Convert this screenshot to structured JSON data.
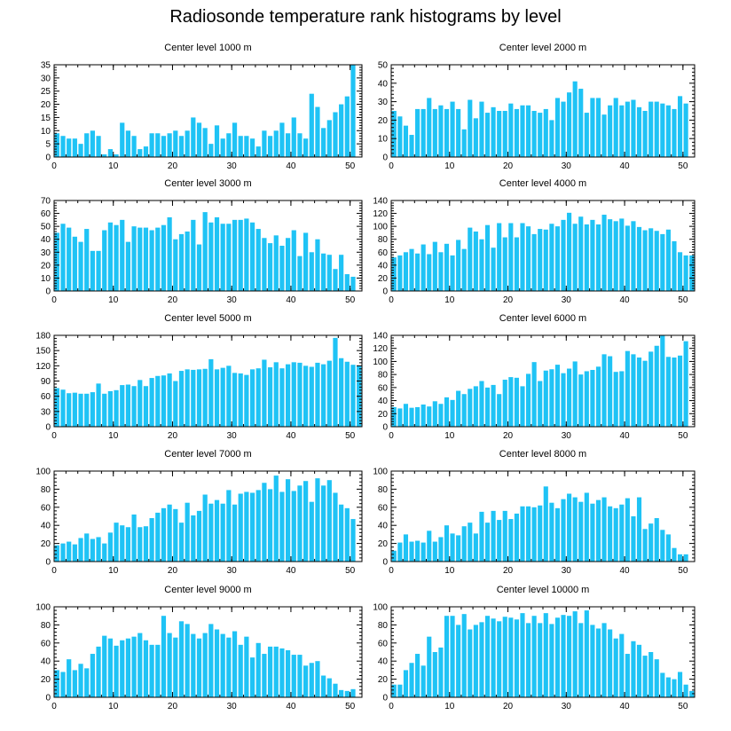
{
  "title": "Radiosonde temperature rank histograms by level",
  "colors": {
    "bar": "#1fc3f5",
    "axis": "#000000",
    "background": "#ffffff"
  },
  "chart_data": [
    {
      "type": "bar",
      "title": "Center level 1000 m",
      "xlabel": "",
      "ylabel": "",
      "xlim": [
        0,
        52
      ],
      "ylim": [
        0,
        35
      ],
      "xticks": [
        0,
        10,
        20,
        30,
        40,
        50
      ],
      "yticks": [
        0,
        5,
        10,
        15,
        20,
        25,
        30,
        35
      ],
      "categories": [
        0,
        1,
        2,
        3,
        4,
        5,
        6,
        7,
        8,
        9,
        10,
        11,
        12,
        13,
        14,
        15,
        16,
        17,
        18,
        19,
        20,
        21,
        22,
        23,
        24,
        25,
        26,
        27,
        28,
        29,
        30,
        31,
        32,
        33,
        34,
        35,
        36,
        37,
        38,
        39,
        40,
        41,
        42,
        43,
        44,
        45,
        46,
        47,
        48,
        49,
        50,
        51
      ],
      "values": [
        9,
        8,
        7,
        7,
        5,
        9,
        10,
        8,
        1,
        3,
        1,
        13,
        10,
        8,
        3,
        4,
        9,
        9,
        8,
        9,
        10,
        8,
        10,
        15,
        13,
        11,
        5,
        12,
        7,
        9,
        13,
        8,
        8,
        7,
        4,
        10,
        8,
        10,
        13,
        9,
        15,
        9,
        7,
        24,
        19,
        11,
        14,
        17,
        20,
        23,
        35,
        0
      ]
    },
    {
      "type": "bar",
      "title": "Center level 2000 m",
      "xlabel": "",
      "ylabel": "",
      "xlim": [
        0,
        52
      ],
      "ylim": [
        0,
        50
      ],
      "xticks": [
        0,
        10,
        20,
        30,
        40,
        50
      ],
      "yticks": [
        0,
        10,
        20,
        30,
        40,
        50
      ],
      "categories": [
        0,
        1,
        2,
        3,
        4,
        5,
        6,
        7,
        8,
        9,
        10,
        11,
        12,
        13,
        14,
        15,
        16,
        17,
        18,
        19,
        20,
        21,
        22,
        23,
        24,
        25,
        26,
        27,
        28,
        29,
        30,
        31,
        32,
        33,
        34,
        35,
        36,
        37,
        38,
        39,
        40,
        41,
        42,
        43,
        44,
        45,
        46,
        47,
        48,
        49,
        50,
        51
      ],
      "values": [
        25,
        22,
        17,
        12,
        26,
        26,
        32,
        26,
        28,
        26,
        30,
        26,
        15,
        31,
        21,
        30,
        24,
        27,
        25,
        25,
        29,
        26,
        28,
        28,
        25,
        24,
        26,
        20,
        32,
        30,
        35,
        41,
        37,
        24,
        32,
        32,
        23,
        28,
        32,
        28,
        30,
        31,
        27,
        25,
        30,
        30,
        29,
        28,
        26,
        33,
        29,
        0
      ]
    },
    {
      "type": "bar",
      "title": "Center level 3000 m",
      "xlabel": "",
      "ylabel": "",
      "xlim": [
        0,
        52
      ],
      "ylim": [
        0,
        70
      ],
      "xticks": [
        0,
        10,
        20,
        30,
        40,
        50
      ],
      "yticks": [
        0,
        10,
        20,
        30,
        40,
        50,
        60,
        70
      ],
      "categories": [
        0,
        1,
        2,
        3,
        4,
        5,
        6,
        7,
        8,
        9,
        10,
        11,
        12,
        13,
        14,
        15,
        16,
        17,
        18,
        19,
        20,
        21,
        22,
        23,
        24,
        25,
        26,
        27,
        28,
        29,
        30,
        31,
        32,
        33,
        34,
        35,
        36,
        37,
        38,
        39,
        40,
        41,
        42,
        43,
        44,
        45,
        46,
        47,
        48,
        49,
        50,
        51
      ],
      "values": [
        45,
        52,
        49,
        42,
        38,
        48,
        31,
        31,
        47,
        53,
        51,
        55,
        38,
        50,
        49,
        49,
        47,
        49,
        51,
        57,
        40,
        44,
        46,
        55,
        36,
        61,
        53,
        57,
        52,
        52,
        55,
        55,
        56,
        53,
        48,
        41,
        37,
        43,
        35,
        41,
        47,
        27,
        45,
        30,
        40,
        29,
        28,
        17,
        28,
        13,
        11,
        0
      ]
    },
    {
      "type": "bar",
      "title": "Center level 4000 m",
      "xlabel": "",
      "ylabel": "",
      "xlim": [
        0,
        52
      ],
      "ylim": [
        0,
        140
      ],
      "xticks": [
        0,
        10,
        20,
        30,
        40,
        50
      ],
      "yticks": [
        0,
        20,
        40,
        60,
        80,
        100,
        120,
        140
      ],
      "categories": [
        0,
        1,
        2,
        3,
        4,
        5,
        6,
        7,
        8,
        9,
        10,
        11,
        12,
        13,
        14,
        15,
        16,
        17,
        18,
        19,
        20,
        21,
        22,
        23,
        24,
        25,
        26,
        27,
        28,
        29,
        30,
        31,
        32,
        33,
        34,
        35,
        36,
        37,
        38,
        39,
        40,
        41,
        42,
        43,
        44,
        45,
        46,
        47,
        48,
        49,
        50,
        51
      ],
      "values": [
        52,
        55,
        60,
        65,
        58,
        72,
        57,
        76,
        60,
        73,
        55,
        79,
        65,
        98,
        92,
        80,
        102,
        67,
        105,
        83,
        105,
        83,
        105,
        100,
        88,
        96,
        95,
        104,
        100,
        110,
        121,
        104,
        115,
        103,
        110,
        103,
        118,
        111,
        108,
        112,
        101,
        108,
        99,
        94,
        97,
        93,
        88,
        95,
        77,
        60,
        55,
        55
      ]
    },
    {
      "type": "bar",
      "title": "Center level 5000 m",
      "xlabel": "",
      "ylabel": "",
      "xlim": [
        0,
        52
      ],
      "ylim": [
        0,
        180
      ],
      "xticks": [
        0,
        10,
        20,
        30,
        40,
        50
      ],
      "yticks": [
        0,
        30,
        60,
        90,
        120,
        150,
        180
      ],
      "categories": [
        0,
        1,
        2,
        3,
        4,
        5,
        6,
        7,
        8,
        9,
        10,
        11,
        12,
        13,
        14,
        15,
        16,
        17,
        18,
        19,
        20,
        21,
        22,
        23,
        24,
        25,
        26,
        27,
        28,
        29,
        30,
        31,
        32,
        33,
        34,
        35,
        36,
        37,
        38,
        39,
        40,
        41,
        42,
        43,
        44,
        45,
        46,
        47,
        48,
        49,
        50,
        51
      ],
      "values": [
        76,
        73,
        66,
        67,
        65,
        65,
        68,
        85,
        65,
        70,
        72,
        82,
        83,
        80,
        92,
        80,
        96,
        100,
        101,
        105,
        90,
        110,
        113,
        112,
        113,
        114,
        133,
        113,
        116,
        120,
        106,
        105,
        102,
        113,
        115,
        132,
        117,
        127,
        115,
        123,
        127,
        126,
        120,
        118,
        126,
        123,
        130,
        175,
        135,
        128,
        122,
        120
      ]
    },
    {
      "type": "bar",
      "title": "Center level 6000 m",
      "xlabel": "",
      "ylabel": "",
      "xlim": [
        0,
        52
      ],
      "ylim": [
        0,
        140
      ],
      "xticks": [
        0,
        10,
        20,
        30,
        40,
        50
      ],
      "yticks": [
        0,
        20,
        40,
        60,
        80,
        100,
        120,
        140
      ],
      "categories": [
        0,
        1,
        2,
        3,
        4,
        5,
        6,
        7,
        8,
        9,
        10,
        11,
        12,
        13,
        14,
        15,
        16,
        17,
        18,
        19,
        20,
        21,
        22,
        23,
        24,
        25,
        26,
        27,
        28,
        29,
        30,
        31,
        32,
        33,
        34,
        35,
        36,
        37,
        38,
        39,
        40,
        41,
        42,
        43,
        44,
        45,
        46,
        47,
        48,
        49,
        50,
        51
      ],
      "values": [
        30,
        28,
        35,
        29,
        30,
        34,
        31,
        39,
        35,
        45,
        41,
        55,
        50,
        58,
        62,
        70,
        60,
        64,
        50,
        72,
        76,
        75,
        62,
        81,
        99,
        70,
        86,
        88,
        95,
        82,
        89,
        100,
        80,
        85,
        87,
        92,
        111,
        108,
        84,
        85,
        116,
        111,
        106,
        101,
        115,
        124,
        140,
        107,
        106,
        109,
        131,
        0
      ]
    },
    {
      "type": "bar",
      "title": "Center level 7000 m",
      "xlabel": "",
      "ylabel": "",
      "xlim": [
        0,
        52
      ],
      "ylim": [
        0,
        100
      ],
      "xticks": [
        0,
        10,
        20,
        30,
        40,
        50
      ],
      "yticks": [
        0,
        20,
        40,
        60,
        80,
        100
      ],
      "categories": [
        0,
        1,
        2,
        3,
        4,
        5,
        6,
        7,
        8,
        9,
        10,
        11,
        12,
        13,
        14,
        15,
        16,
        17,
        18,
        19,
        20,
        21,
        22,
        23,
        24,
        25,
        26,
        27,
        28,
        29,
        30,
        31,
        32,
        33,
        34,
        35,
        36,
        37,
        38,
        39,
        40,
        41,
        42,
        43,
        44,
        45,
        46,
        47,
        48,
        49,
        50,
        51
      ],
      "values": [
        18,
        20,
        22,
        19,
        26,
        31,
        25,
        27,
        20,
        32,
        43,
        40,
        38,
        52,
        38,
        39,
        48,
        54,
        59,
        63,
        58,
        43,
        65,
        51,
        56,
        74,
        64,
        68,
        64,
        79,
        63,
        75,
        77,
        76,
        79,
        87,
        80,
        95,
        77,
        91,
        78,
        84,
        89,
        66,
        92,
        84,
        90,
        76,
        63,
        59,
        47,
        0
      ]
    },
    {
      "type": "bar",
      "title": "Center level 8000 m",
      "xlabel": "",
      "ylabel": "",
      "xlim": [
        0,
        52
      ],
      "ylim": [
        0,
        100
      ],
      "xticks": [
        0,
        10,
        20,
        30,
        40,
        50
      ],
      "yticks": [
        0,
        20,
        40,
        60,
        80,
        100
      ],
      "categories": [
        0,
        1,
        2,
        3,
        4,
        5,
        6,
        7,
        8,
        9,
        10,
        11,
        12,
        13,
        14,
        15,
        16,
        17,
        18,
        19,
        20,
        21,
        22,
        23,
        24,
        25,
        26,
        27,
        28,
        29,
        30,
        31,
        32,
        33,
        34,
        35,
        36,
        37,
        38,
        39,
        40,
        41,
        42,
        43,
        44,
        45,
        46,
        47,
        48,
        49,
        50,
        51
      ],
      "values": [
        12,
        21,
        30,
        22,
        23,
        21,
        34,
        22,
        27,
        40,
        31,
        29,
        39,
        43,
        31,
        55,
        43,
        56,
        46,
        56,
        47,
        53,
        61,
        61,
        60,
        62,
        83,
        65,
        59,
        69,
        75,
        71,
        66,
        76,
        64,
        68,
        71,
        61,
        59,
        63,
        70,
        50,
        71,
        36,
        42,
        48,
        35,
        30,
        15,
        8,
        8,
        0
      ]
    },
    {
      "type": "bar",
      "title": "Center level 9000 m",
      "xlabel": "",
      "ylabel": "",
      "xlim": [
        0,
        52
      ],
      "ylim": [
        0,
        100
      ],
      "xticks": [
        0,
        10,
        20,
        30,
        40,
        50
      ],
      "yticks": [
        0,
        20,
        40,
        60,
        80,
        100
      ],
      "categories": [
        0,
        1,
        2,
        3,
        4,
        5,
        6,
        7,
        8,
        9,
        10,
        11,
        12,
        13,
        14,
        15,
        16,
        17,
        18,
        19,
        20,
        21,
        22,
        23,
        24,
        25,
        26,
        27,
        28,
        29,
        30,
        31,
        32,
        33,
        34,
        35,
        36,
        37,
        38,
        39,
        40,
        41,
        42,
        43,
        44,
        45,
        46,
        47,
        48,
        49,
        50,
        51
      ],
      "values": [
        30,
        28,
        42,
        30,
        37,
        32,
        48,
        56,
        68,
        65,
        57,
        63,
        65,
        67,
        71,
        63,
        58,
        58,
        90,
        71,
        66,
        84,
        81,
        70,
        65,
        71,
        81,
        75,
        70,
        66,
        73,
        58,
        67,
        44,
        60,
        48,
        56,
        56,
        54,
        52,
        47,
        47,
        35,
        38,
        40,
        24,
        21,
        15,
        8,
        7,
        9,
        0
      ]
    },
    {
      "type": "bar",
      "title": "Center level 10000 m",
      "xlabel": "",
      "ylabel": "",
      "xlim": [
        0,
        52
      ],
      "ylim": [
        0,
        100
      ],
      "xticks": [
        0,
        10,
        20,
        30,
        40,
        50
      ],
      "yticks": [
        0,
        20,
        40,
        60,
        80,
        100
      ],
      "categories": [
        0,
        1,
        2,
        3,
        4,
        5,
        6,
        7,
        8,
        9,
        10,
        11,
        12,
        13,
        14,
        15,
        16,
        17,
        18,
        19,
        20,
        21,
        22,
        23,
        24,
        25,
        26,
        27,
        28,
        29,
        30,
        31,
        32,
        33,
        34,
        35,
        36,
        37,
        38,
        39,
        40,
        41,
        42,
        43,
        44,
        45,
        46,
        47,
        48,
        49,
        50,
        51
      ],
      "values": [
        14,
        14,
        30,
        38,
        48,
        35,
        67,
        50,
        55,
        90,
        90,
        80,
        92,
        75,
        80,
        83,
        90,
        87,
        84,
        89,
        88,
        86,
        93,
        82,
        90,
        82,
        93,
        81,
        88,
        91,
        90,
        95,
        82,
        96,
        80,
        76,
        82,
        75,
        65,
        70,
        48,
        62,
        58,
        46,
        50,
        42,
        27,
        22,
        20,
        28,
        14,
        7
      ]
    }
  ]
}
